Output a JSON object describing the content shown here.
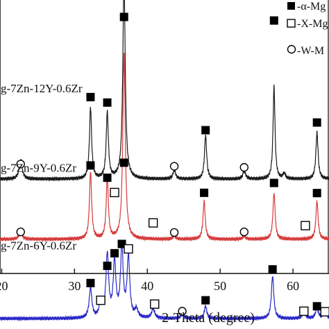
{
  "chart_data": {
    "type": "line",
    "xlabel": "2-Theta (degree)",
    "xlim": [
      15,
      68
    ],
    "x_ticks": [
      20,
      30,
      40,
      50,
      60
    ],
    "grid": false,
    "legend_placement": "top-right",
    "legend": [
      {
        "symbol": "filled-square-icon",
        "label": "-α-Mg"
      },
      {
        "symbol": "open-square-icon",
        "label": "-X-Mg"
      },
      {
        "symbol": "open-circle-icon",
        "label": "-W-M"
      }
    ],
    "series": [
      {
        "name": "g-7Zn-12Y-0.6Zr",
        "color": "#1a1a1a",
        "baseline": 0.655,
        "peaks": [
          {
            "x": 22.6,
            "h": 0.07,
            "w": 0.25
          },
          {
            "x": 32.2,
            "h": 0.26,
            "w": 0.18
          },
          {
            "x": 34.5,
            "h": 0.24,
            "w": 0.18
          },
          {
            "x": 36.8,
            "h": 0.72,
            "w": 0.2
          },
          {
            "x": 43.7,
            "h": 0.032,
            "w": 0.22
          },
          {
            "x": 48.0,
            "h": 0.16,
            "w": 0.18
          },
          {
            "x": 53.3,
            "h": 0.03,
            "w": 0.22
          },
          {
            "x": 57.4,
            "h": 0.34,
            "w": 0.16
          },
          {
            "x": 58.8,
            "h": 0.02,
            "w": 0.2
          },
          {
            "x": 63.3,
            "h": 0.17,
            "w": 0.18
          },
          {
            "x": 66.8,
            "h": 0.055,
            "w": 0.2
          }
        ],
        "markers": [
          {
            "x": 22.6,
            "symbol": "open-circle-icon",
            "level": 0.6
          },
          {
            "x": 32.2,
            "symbol": "filled-square-icon",
            "level": 0.355
          },
          {
            "x": 34.5,
            "symbol": "filled-square-icon",
            "level": 0.375
          },
          {
            "x": 36.8,
            "symbol": "filled-square-icon",
            "level": 0.062
          },
          {
            "x": 43.7,
            "symbol": "open-circle-icon",
            "level": 0.608
          },
          {
            "x": 48.0,
            "symbol": "filled-square-icon",
            "level": 0.476
          },
          {
            "x": 53.3,
            "symbol": "open-circle-icon",
            "level": 0.612
          },
          {
            "x": 57.4,
            "symbol": "filled-square-icon",
            "level": 0.075
          },
          {
            "x": 63.3,
            "symbol": "filled-square-icon",
            "level": 0.448
          },
          {
            "x": 66.8,
            "symbol": "open-circle-icon",
            "level": 0.592
          }
        ]
      },
      {
        "name": "g-7Zn-9Y-0.6Zr",
        "color": "#d63a3a",
        "baseline": 0.875,
        "peaks": [
          {
            "x": 22.6,
            "h": 0.03,
            "w": 0.25
          },
          {
            "x": 32.2,
            "h": 0.245,
            "w": 0.18
          },
          {
            "x": 34.5,
            "h": 0.22,
            "w": 0.18
          },
          {
            "x": 36.8,
            "h": 0.68,
            "w": 0.2
          },
          {
            "x": 43.7,
            "h": 0.012,
            "w": 0.22
          },
          {
            "x": 47.8,
            "h": 0.14,
            "w": 0.18
          },
          {
            "x": 53.3,
            "h": 0.012,
            "w": 0.22
          },
          {
            "x": 57.4,
            "h": 0.17,
            "w": 0.18
          },
          {
            "x": 63.3,
            "h": 0.14,
            "w": 0.18
          },
          {
            "x": 66.8,
            "h": 0.02,
            "w": 0.2
          }
        ],
        "markers": [
          {
            "x": 22.6,
            "symbol": "open-circle-icon",
            "level": 0.848
          },
          {
            "x": 32.2,
            "symbol": "filled-square-icon",
            "level": 0.605
          },
          {
            "x": 34.5,
            "symbol": "filled-square-icon",
            "level": 0.65
          },
          {
            "x": 35.5,
            "symbol": "open-square-icon",
            "level": 0.704
          },
          {
            "x": 36.8,
            "symbol": "filled-square-icon",
            "level": 0.595
          },
          {
            "x": 40.8,
            "symbol": "open-square-icon",
            "level": 0.815
          },
          {
            "x": 43.7,
            "symbol": "open-circle-icon",
            "level": 0.85
          },
          {
            "x": 47.8,
            "symbol": "filled-square-icon",
            "level": 0.705
          },
          {
            "x": 53.3,
            "symbol": "open-circle-icon",
            "level": 0.848
          },
          {
            "x": 57.4,
            "symbol": "filled-square-icon",
            "level": 0.669
          },
          {
            "x": 61.7,
            "symbol": "open-square-icon",
            "level": 0.825
          },
          {
            "x": 63.3,
            "symbol": "filled-square-icon",
            "level": 0.706
          },
          {
            "x": 66.8,
            "symbol": "open-circle-icon",
            "level": 0.848
          }
        ]
      },
      {
        "name": "g-7Zn-6Y-0.6Zr",
        "color": "#2828c8",
        "baseline": 1.165,
        "peaks": [
          {
            "x": 32.2,
            "h": 0.11,
            "w": 0.22
          },
          {
            "x": 33.6,
            "h": 0.06,
            "w": 0.22
          },
          {
            "x": 34.5,
            "h": 0.23,
            "w": 0.22
          },
          {
            "x": 35.5,
            "h": 0.2,
            "w": 0.22
          },
          {
            "x": 36.5,
            "h": 0.25,
            "w": 0.22
          },
          {
            "x": 37.4,
            "h": 0.22,
            "w": 0.22
          },
          {
            "x": 38.5,
            "h": 0.03,
            "w": 0.25
          },
          {
            "x": 40.8,
            "h": 0.035,
            "w": 0.25
          },
          {
            "x": 44.8,
            "h": 0.015,
            "w": 0.25
          },
          {
            "x": 48.0,
            "h": 0.045,
            "w": 0.2
          },
          {
            "x": 57.2,
            "h": 0.155,
            "w": 0.2
          },
          {
            "x": 61.5,
            "h": 0.028,
            "w": 0.22
          },
          {
            "x": 63.3,
            "h": 0.04,
            "w": 0.22
          },
          {
            "x": 64.4,
            "h": 0.03,
            "w": 0.22
          },
          {
            "x": 66.8,
            "h": 0.03,
            "w": 0.22
          }
        ],
        "markers": [
          {
            "x": 32.2,
            "symbol": "filled-square-icon",
            "level": 1.035
          },
          {
            "x": 33.6,
            "symbol": "open-square-icon",
            "level": 1.098
          },
          {
            "x": 34.5,
            "symbol": "filled-square-icon",
            "level": 0.972
          },
          {
            "x": 35.5,
            "symbol": "filled-square-icon",
            "level": 0.926
          },
          {
            "x": 36.5,
            "symbol": "filled-square-icon",
            "level": 0.892
          },
          {
            "x": 37.4,
            "symbol": "open-square-icon",
            "level": 0.91
          },
          {
            "x": 41.0,
            "symbol": "open-square-icon",
            "level": 1.112
          },
          {
            "x": 44.8,
            "symbol": "open-circle-icon",
            "level": 1.138
          },
          {
            "x": 48.0,
            "symbol": "filled-square-icon",
            "level": 1.098
          },
          {
            "x": 57.2,
            "symbol": "filled-square-icon",
            "level": 0.985
          },
          {
            "x": 61.5,
            "symbol": "open-square-icon",
            "level": 1.138
          },
          {
            "x": 63.3,
            "symbol": "filled-square-icon",
            "level": 1.12
          },
          {
            "x": 64.4,
            "symbol": "open-square-icon",
            "level": 1.14
          },
          {
            "x": 67.2,
            "symbol": "filled-square-icon",
            "level": 1.14
          }
        ]
      }
    ]
  }
}
